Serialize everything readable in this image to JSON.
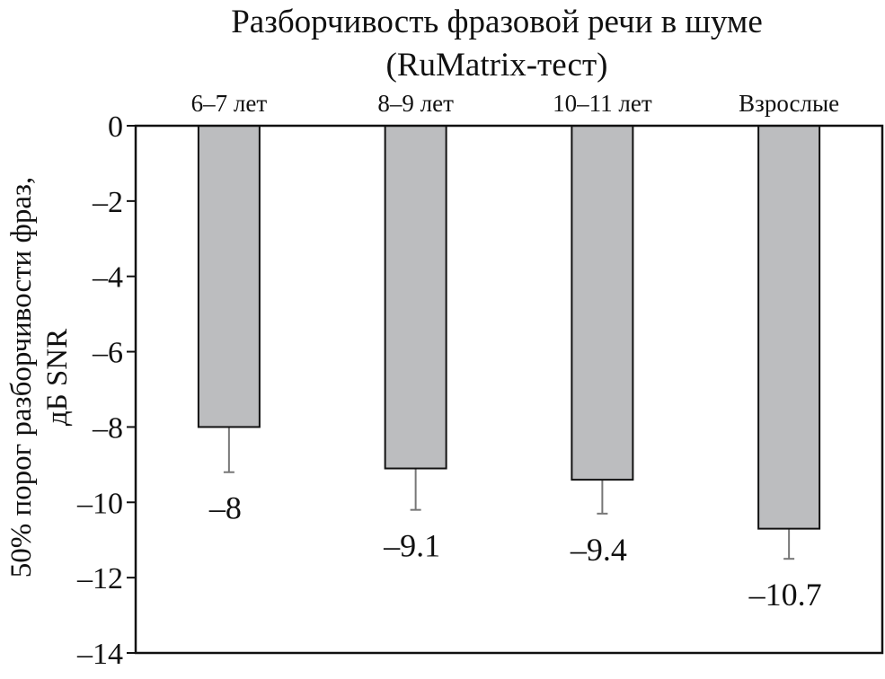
{
  "chart_data": {
    "type": "bar",
    "title": "Разборчивость фразовой речи в шуме",
    "subtitle": "(RuMatrix-тест)",
    "xlabel": "",
    "ylabel": [
      "50% порог разборчивости фраз,",
      "дБ SNR"
    ],
    "categories": [
      "6–7 лет",
      "8–9 лет",
      "10–11 лет",
      "Взрослые"
    ],
    "values": [
      -8,
      -9.1,
      -9.4,
      -10.7
    ],
    "value_labels": [
      "–8",
      "–9.1",
      "–9.4",
      "–10.7"
    ],
    "error_lower": [
      -9.2,
      -10.2,
      -10.3,
      -11.5
    ],
    "ylim": [
      -14,
      0
    ],
    "yticks": [
      0,
      -2,
      -4,
      -6,
      -8,
      -10,
      -12,
      -14
    ],
    "ytick_labels": [
      "0",
      "–2",
      "–4",
      "–6",
      "–8",
      "–10",
      "–12",
      "–14"
    ],
    "grid": false,
    "bar_color": "#bcbdbf",
    "error_color": "#777777"
  }
}
